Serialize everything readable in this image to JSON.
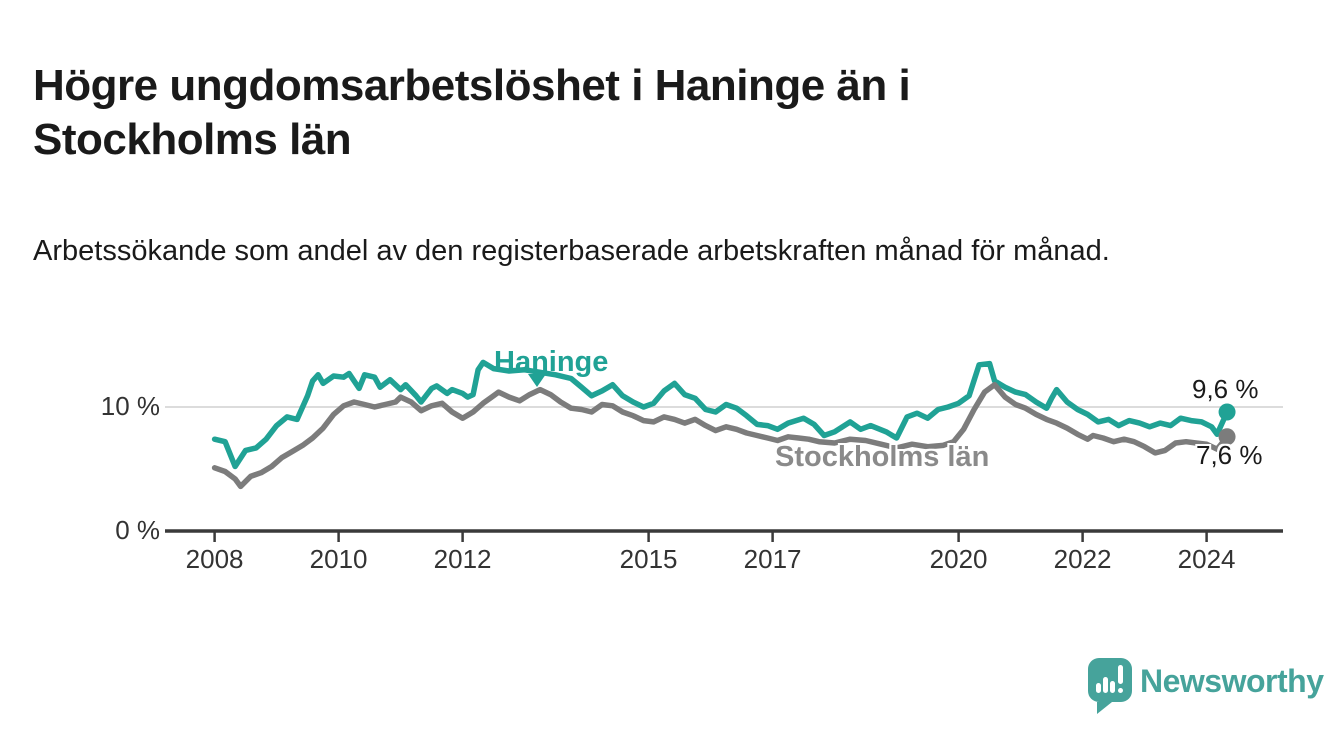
{
  "header": {
    "title": "Högre ungdomsarbetslöshet i Haninge än i Stockholms län",
    "subtitle": "Arbetssökande som andel av den registerbaserade arbetskraften månad för månad."
  },
  "colors": {
    "haninge_teal": "#20a295",
    "stockholm_gray": "#7c7c7c",
    "axis": "#3a3a3a",
    "tick_text": "#333333",
    "gridline": "#dcdcdc",
    "label_gray": "#8a8a8a",
    "brand_teal": "#46a39b",
    "text": "#1a1a1a"
  },
  "chart_data": {
    "type": "line",
    "title": "Högre ungdomsarbetslöshet i Haninge än i Stockholms län",
    "subtitle": "Arbetssökande som andel av den registerbaserade arbetskraften månad för månad.",
    "unit": "%",
    "legend_position": "inline-annotations",
    "grid": "horizontal-10-only",
    "x_axis": {
      "ticks": [
        2008,
        2010,
        2012,
        2015,
        2017,
        2020,
        2022,
        2024
      ],
      "range": [
        2007.2,
        2025.2
      ]
    },
    "y_axis": {
      "ticks": [
        {
          "value": 0,
          "label": "0 %"
        },
        {
          "value": 10,
          "label": "10 %"
        }
      ],
      "range": [
        0,
        16.2
      ]
    },
    "series": [
      {
        "name": "Haninge",
        "color": "#20a295",
        "latest_label": "9,6 %",
        "latest_value": 9.6,
        "points": [
          [
            2008.0,
            7.4
          ],
          [
            2008.17,
            7.2
          ],
          [
            2008.33,
            5.2
          ],
          [
            2008.5,
            6.5
          ],
          [
            2008.67,
            6.7
          ],
          [
            2008.83,
            7.4
          ],
          [
            2009.0,
            8.5
          ],
          [
            2009.17,
            9.2
          ],
          [
            2009.33,
            9.0
          ],
          [
            2009.5,
            10.9
          ],
          [
            2009.58,
            12.1
          ],
          [
            2009.67,
            12.6
          ],
          [
            2009.75,
            11.9
          ],
          [
            2009.92,
            12.5
          ],
          [
            2010.08,
            12.4
          ],
          [
            2010.17,
            12.7
          ],
          [
            2010.33,
            11.5
          ],
          [
            2010.42,
            12.6
          ],
          [
            2010.58,
            12.4
          ],
          [
            2010.67,
            11.6
          ],
          [
            2010.83,
            12.2
          ],
          [
            2011.0,
            11.4
          ],
          [
            2011.08,
            11.8
          ],
          [
            2011.25,
            10.9
          ],
          [
            2011.33,
            10.4
          ],
          [
            2011.5,
            11.5
          ],
          [
            2011.58,
            11.7
          ],
          [
            2011.75,
            11.1
          ],
          [
            2011.83,
            11.4
          ],
          [
            2012.0,
            11.1
          ],
          [
            2012.08,
            10.8
          ],
          [
            2012.17,
            11.0
          ],
          [
            2012.25,
            13.0
          ],
          [
            2012.33,
            13.6
          ],
          [
            2012.5,
            13.1
          ],
          [
            2012.75,
            12.9
          ],
          [
            2013.0,
            13.0
          ],
          [
            2013.25,
            12.8
          ],
          [
            2013.5,
            12.6
          ],
          [
            2013.75,
            12.3
          ],
          [
            2013.92,
            11.6
          ],
          [
            2014.08,
            10.9
          ],
          [
            2014.25,
            11.3
          ],
          [
            2014.42,
            11.8
          ],
          [
            2014.58,
            10.9
          ],
          [
            2014.75,
            10.4
          ],
          [
            2014.92,
            10.0
          ],
          [
            2015.08,
            10.3
          ],
          [
            2015.25,
            11.3
          ],
          [
            2015.42,
            11.9
          ],
          [
            2015.58,
            11.0
          ],
          [
            2015.75,
            10.7
          ],
          [
            2015.92,
            9.8
          ],
          [
            2016.08,
            9.6
          ],
          [
            2016.25,
            10.2
          ],
          [
            2016.42,
            9.9
          ],
          [
            2016.58,
            9.3
          ],
          [
            2016.75,
            8.6
          ],
          [
            2016.92,
            8.5
          ],
          [
            2017.08,
            8.2
          ],
          [
            2017.25,
            8.7
          ],
          [
            2017.5,
            9.1
          ],
          [
            2017.67,
            8.6
          ],
          [
            2017.83,
            7.7
          ],
          [
            2018.0,
            8.0
          ],
          [
            2018.25,
            8.8
          ],
          [
            2018.42,
            8.2
          ],
          [
            2018.58,
            8.5
          ],
          [
            2018.83,
            8.0
          ],
          [
            2019.0,
            7.5
          ],
          [
            2019.17,
            9.2
          ],
          [
            2019.33,
            9.5
          ],
          [
            2019.5,
            9.1
          ],
          [
            2019.67,
            9.8
          ],
          [
            2019.83,
            10.0
          ],
          [
            2020.0,
            10.3
          ],
          [
            2020.17,
            10.9
          ],
          [
            2020.33,
            13.4
          ],
          [
            2020.5,
            13.5
          ],
          [
            2020.58,
            12.1
          ],
          [
            2020.75,
            11.6
          ],
          [
            2020.92,
            11.2
          ],
          [
            2021.08,
            11.0
          ],
          [
            2021.25,
            10.4
          ],
          [
            2021.42,
            9.9
          ],
          [
            2021.5,
            10.7
          ],
          [
            2021.58,
            11.4
          ],
          [
            2021.75,
            10.4
          ],
          [
            2021.92,
            9.8
          ],
          [
            2022.08,
            9.4
          ],
          [
            2022.25,
            8.8
          ],
          [
            2022.42,
            9.0
          ],
          [
            2022.58,
            8.5
          ],
          [
            2022.75,
            8.9
          ],
          [
            2022.92,
            8.7
          ],
          [
            2023.08,
            8.4
          ],
          [
            2023.25,
            8.7
          ],
          [
            2023.42,
            8.5
          ],
          [
            2023.58,
            9.1
          ],
          [
            2023.75,
            8.9
          ],
          [
            2023.92,
            8.8
          ],
          [
            2024.08,
            8.4
          ],
          [
            2024.17,
            7.8
          ],
          [
            2024.33,
            9.6
          ]
        ]
      },
      {
        "name": "Stockholms län",
        "color": "#7c7c7c",
        "latest_label": "7,6 %",
        "latest_value": 7.6,
        "points": [
          [
            2008.0,
            5.1
          ],
          [
            2008.17,
            4.8
          ],
          [
            2008.33,
            4.2
          ],
          [
            2008.42,
            3.6
          ],
          [
            2008.58,
            4.4
          ],
          [
            2008.75,
            4.7
          ],
          [
            2008.92,
            5.2
          ],
          [
            2009.08,
            5.9
          ],
          [
            2009.25,
            6.4
          ],
          [
            2009.42,
            6.9
          ],
          [
            2009.58,
            7.5
          ],
          [
            2009.75,
            8.3
          ],
          [
            2009.92,
            9.4
          ],
          [
            2010.08,
            10.1
          ],
          [
            2010.25,
            10.4
          ],
          [
            2010.42,
            10.2
          ],
          [
            2010.58,
            10.0
          ],
          [
            2010.75,
            10.2
          ],
          [
            2010.92,
            10.4
          ],
          [
            2011.0,
            10.8
          ],
          [
            2011.17,
            10.4
          ],
          [
            2011.33,
            9.7
          ],
          [
            2011.5,
            10.1
          ],
          [
            2011.67,
            10.3
          ],
          [
            2011.83,
            9.6
          ],
          [
            2012.0,
            9.1
          ],
          [
            2012.17,
            9.6
          ],
          [
            2012.33,
            10.3
          ],
          [
            2012.5,
            10.9
          ],
          [
            2012.58,
            11.2
          ],
          [
            2012.75,
            10.8
          ],
          [
            2012.92,
            10.5
          ],
          [
            2013.08,
            11.0
          ],
          [
            2013.25,
            11.4
          ],
          [
            2013.42,
            11.0
          ],
          [
            2013.58,
            10.4
          ],
          [
            2013.75,
            9.9
          ],
          [
            2013.92,
            9.8
          ],
          [
            2014.08,
            9.6
          ],
          [
            2014.25,
            10.2
          ],
          [
            2014.42,
            10.1
          ],
          [
            2014.58,
            9.6
          ],
          [
            2014.75,
            9.3
          ],
          [
            2014.92,
            8.9
          ],
          [
            2015.08,
            8.8
          ],
          [
            2015.25,
            9.2
          ],
          [
            2015.42,
            9.0
          ],
          [
            2015.58,
            8.7
          ],
          [
            2015.75,
            9.0
          ],
          [
            2015.92,
            8.5
          ],
          [
            2016.08,
            8.1
          ],
          [
            2016.25,
            8.4
          ],
          [
            2016.42,
            8.2
          ],
          [
            2016.58,
            7.9
          ],
          [
            2016.75,
            7.7
          ],
          [
            2016.92,
            7.5
          ],
          [
            2017.08,
            7.3
          ],
          [
            2017.25,
            7.6
          ],
          [
            2017.42,
            7.5
          ],
          [
            2017.58,
            7.4
          ],
          [
            2017.75,
            7.2
          ],
          [
            2018.0,
            7.1
          ],
          [
            2018.25,
            7.4
          ],
          [
            2018.5,
            7.3
          ],
          [
            2018.75,
            7.0
          ],
          [
            2019.0,
            6.7
          ],
          [
            2019.25,
            7.0
          ],
          [
            2019.5,
            6.8
          ],
          [
            2019.75,
            6.9
          ],
          [
            2019.92,
            7.2
          ],
          [
            2020.08,
            8.2
          ],
          [
            2020.25,
            9.8
          ],
          [
            2020.42,
            11.2
          ],
          [
            2020.58,
            11.8
          ],
          [
            2020.75,
            10.8
          ],
          [
            2020.92,
            10.2
          ],
          [
            2021.08,
            9.9
          ],
          [
            2021.25,
            9.4
          ],
          [
            2021.42,
            9.0
          ],
          [
            2021.58,
            8.7
          ],
          [
            2021.75,
            8.3
          ],
          [
            2021.92,
            7.8
          ],
          [
            2022.08,
            7.4
          ],
          [
            2022.17,
            7.7
          ],
          [
            2022.33,
            7.5
          ],
          [
            2022.5,
            7.2
          ],
          [
            2022.67,
            7.4
          ],
          [
            2022.83,
            7.2
          ],
          [
            2023.0,
            6.8
          ],
          [
            2023.17,
            6.3
          ],
          [
            2023.33,
            6.5
          ],
          [
            2023.5,
            7.1
          ],
          [
            2023.67,
            7.2
          ],
          [
            2023.83,
            7.1
          ],
          [
            2024.0,
            7.0
          ],
          [
            2024.17,
            6.6
          ],
          [
            2024.33,
            7.6
          ]
        ]
      }
    ],
    "annotations": {
      "haninge_label": "Haninge",
      "stockholm_label": "Stockholms län"
    }
  },
  "branding": {
    "wordmark": "Newsworthy"
  }
}
